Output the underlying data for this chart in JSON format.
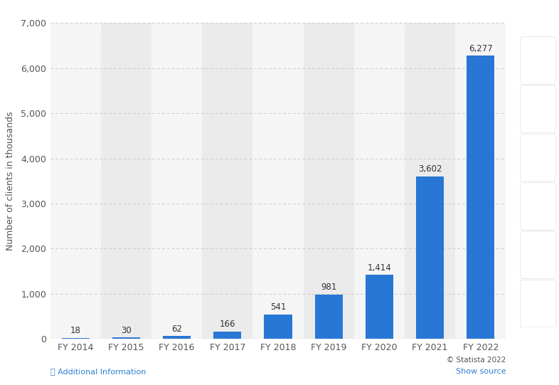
{
  "categories": [
    "FY 2014",
    "FY 2015",
    "FY 2016",
    "FY 2017",
    "FY 2018",
    "FY 2019",
    "FY 2020",
    "FY 2021",
    "FY 2022"
  ],
  "values": [
    18,
    30,
    62,
    166,
    541,
    981,
    1414,
    3602,
    6277
  ],
  "bar_color": "#2877d4",
  "ylabel": "Number of clients in thousands",
  "ylim": [
    0,
    7000
  ],
  "yticks": [
    0,
    1000,
    2000,
    3000,
    4000,
    5000,
    6000,
    7000
  ],
  "background_color": "#ffffff",
  "plot_bg_even": "#f2f2f2",
  "plot_bg_odd": "#fafafa",
  "grid_color": "#cccccc",
  "tick_fontsize": 9,
  "ylabel_fontsize": 9,
  "annotation_fontsize": 8.5,
  "bottom_text_left": "Additional Information",
  "bottom_text_right": "© Statista 2022",
  "bottom_text_right2": "Show source",
  "col_shade_even": "#ebebeb",
  "col_shade_odd": "#f5f5f5"
}
